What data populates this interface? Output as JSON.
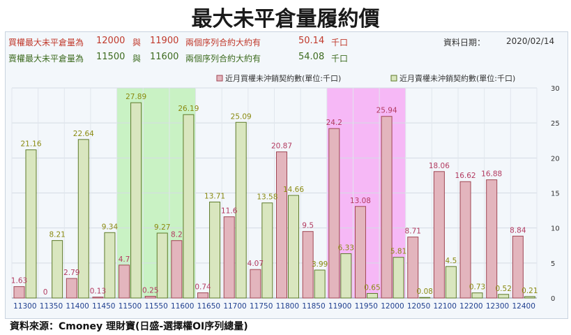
{
  "title": "最大未平倉量履約價",
  "info": {
    "call_label": "買權最大未平倉量為",
    "call_strike_1": "12000",
    "call_join": "與",
    "call_strike_2": "11900",
    "call_text": "兩個序列合約大約有",
    "call_amount": "50.14",
    "call_unit": "千口",
    "put_label": "賣權最大未平倉量為",
    "put_strike_1": "11500",
    "put_join": "與",
    "put_strike_2": "11600",
    "put_text": "兩個序列合約大約有",
    "put_amount": "54.08",
    "put_unit": "千口",
    "date_label": "資料日期：",
    "date_value": "2020/02/14"
  },
  "source": "資料來源：Cmoney 理財寶(日盛-選擇權OI序列總量)",
  "colors": {
    "call_fill": "#e3b5bd",
    "call_stroke": "#a04654",
    "call_label": "#b23a60",
    "put_fill": "#d9e6bf",
    "put_stroke": "#5e7a2a",
    "put_label": "#8a8a10",
    "put_highlight": "#c9f2c4",
    "call_highlight": "#f6b8f6"
  },
  "chart_data": {
    "type": "bar",
    "categories": [
      "11300",
      "11350",
      "11400",
      "11450",
      "11500",
      "11550",
      "11600",
      "11650",
      "11700",
      "11750",
      "11800",
      "11850",
      "11900",
      "11950",
      "12000",
      "12050",
      "12100",
      "12200",
      "12300",
      "12400"
    ],
    "series": [
      {
        "name": "近月買權未沖銷契約數(單位:千口)",
        "values": [
          1.63,
          0,
          2.79,
          0.13,
          4.7,
          0.25,
          8.2,
          0.74,
          11.6,
          4.07,
          20.87,
          9.5,
          24.2,
          13.08,
          25.94,
          8.71,
          18.06,
          16.62,
          16.88,
          8.84
        ]
      },
      {
        "name": "近月賣權未沖銷契約數(單位:千口)",
        "values": [
          21.16,
          8.21,
          22.64,
          9.34,
          27.89,
          9.27,
          26.19,
          13.71,
          25.09,
          13.58,
          14.66,
          3.99,
          6.33,
          0.65,
          5.81,
          0.08,
          4.5,
          0.73,
          0.52,
          0.21
        ]
      }
    ],
    "call_labels": [
      "1.63",
      "0",
      "2.79",
      "0.13",
      "4.7",
      "0.25",
      "8.2",
      "0.74",
      "11.6",
      "4.07",
      "20.87",
      "9.5",
      "24.2",
      "13.08",
      "25.94",
      "8.71",
      "18.06",
      "16.62",
      "16.88",
      "8.84"
    ],
    "put_labels": [
      "21.16",
      "8.21",
      "22.64",
      "9.34",
      "27.89",
      "9.27",
      "26.19",
      "13.71",
      "25.09",
      "13.58",
      "14.66",
      "3.99",
      "6.33",
      "0.65",
      "5.81",
      "0.08",
      "4.5",
      "0.73",
      "0.52",
      "0.21"
    ],
    "yticks": [
      "0",
      "5",
      "10",
      "15",
      "20",
      "25",
      "30"
    ],
    "ylim": [
      0,
      30
    ],
    "y_axis_side": "right",
    "put_highlight_range": [
      "11500",
      "11600"
    ],
    "call_highlight_range": [
      "11900",
      "12000"
    ],
    "grid": true,
    "legend_placement": "top-right"
  }
}
